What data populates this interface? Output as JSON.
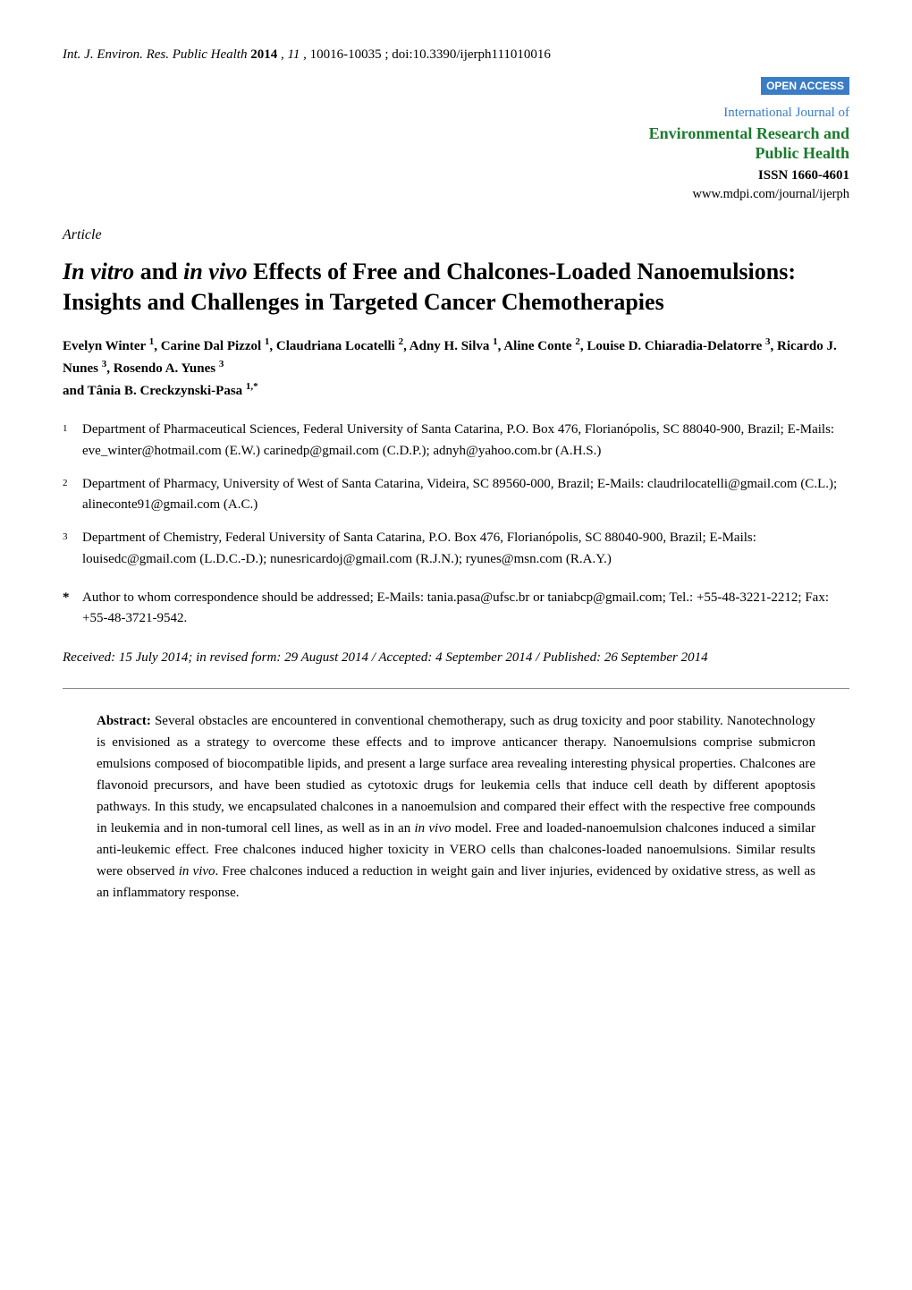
{
  "header": {
    "journal_abbrev": "Int. J. Environ. Res. Public Health",
    "year": "2014",
    "volume": "11",
    "pages": "10016-10035",
    "doi": "doi:10.3390/ijerph111010016"
  },
  "open_access": "OPEN ACCESS",
  "journal": {
    "intro": "International Journal of",
    "name_line1": "Environmental Research and",
    "name_line2": "Public Health",
    "issn": "ISSN 1660-4601",
    "url": "www.mdpi.com/journal/ijerph"
  },
  "article_type": "Article",
  "title": {
    "seg1_italic": "In vitro",
    "seg2": " and ",
    "seg3_italic": "in vivo",
    "seg4": " Effects of Free and Chalcones-Loaded Nanoemulsions: Insights and Challenges in Targeted Cancer Chemotherapies"
  },
  "authors": {
    "a1": "Evelyn Winter",
    "a1_sup": "1",
    "a2": "Carine Dal Pizzol",
    "a2_sup": "1",
    "a3": "Claudriana Locatelli",
    "a3_sup": "2",
    "a4": "Adny H. Silva",
    "a4_sup": "1",
    "a5": "Aline Conte",
    "a5_sup": "2",
    "a6": "Louise D. Chiaradia-Delatorre",
    "a6_sup": "3",
    "a7": "Ricardo J. Nunes",
    "a7_sup": "3",
    "a8": "Rosendo A. Yunes",
    "a8_sup": "3",
    "a9_prefix": "and ",
    "a9": "Tânia B. Creckzynski-Pasa",
    "a9_sup": "1,*"
  },
  "affiliations": [
    {
      "num": "1",
      "text": "Department of Pharmaceutical Sciences, Federal University of Santa Catarina, P.O. Box 476, Florianópolis, SC 88040-900, Brazil; E-Mails: eve_winter@hotmail.com (E.W.) carinedp@gmail.com (C.D.P.); adnyh@yahoo.com.br (A.H.S.)"
    },
    {
      "num": "2",
      "text": "Department of Pharmacy, University of West of Santa Catarina, Videira, SC 89560-000, Brazil; E-Mails: claudrilocatelli@gmail.com (C.L.); alineconte91@gmail.com (A.C.)"
    },
    {
      "num": "3",
      "text": "Department of Chemistry, Federal University of Santa Catarina, P.O. Box 476, Florianópolis, SC 88040-900, Brazil; E-Mails: louisedc@gmail.com (L.D.C.-D.); nunesricardoj@gmail.com (R.J.N.); ryunes@msn.com (R.A.Y.)"
    }
  ],
  "corresponding": {
    "star": "*",
    "text": "Author to whom correspondence should be addressed; E-Mails: tania.pasa@ufsc.br or taniabcp@gmail.com; Tel.: +55-48-3221-2212; Fax: +55-48-3721-9542."
  },
  "dates": "Received: 15 July 2014; in revised form: 29 August 2014 / Accepted: 4 September 2014 / Published: 26 September 2014",
  "abstract": {
    "label": "Abstract:",
    "seg1": " Several obstacles are encountered in conventional chemotherapy, such as drug toxicity and poor stability. Nanotechnology is envisioned as a strategy to overcome these effects and to improve anticancer therapy. Nanoemulsions comprise submicron emulsions composed of biocompatible lipids, and present a large surface area revealing interesting physical properties. Chalcones are flavonoid precursors, and have been studied as cytotoxic drugs for leukemia cells that induce cell death by different apoptosis pathways. In this study, we encapsulated chalcones in a nanoemulsion and compared their effect with the respective free compounds in leukemia and in non-tumoral cell lines, as well as in an ",
    "seg2_italic": "in vivo",
    "seg3": " model. Free and loaded-nanoemulsion chalcones induced a similar anti-leukemic effect. Free chalcones induced higher toxicity in VERO cells than chalcones-loaded nanoemulsions. Similar results were observed ",
    "seg4_italic": "in vivo",
    "seg5": ". Free chalcones induced a reduction in weight gain and liver injuries, evidenced by oxidative stress, as well as an inflammatory response."
  },
  "colors": {
    "open_access_bg": "#3b7dc4",
    "journal_intro": "#3b7dc4",
    "journal_name": "#1a7a2d",
    "divider": "#888888",
    "text": "#000000",
    "background": "#ffffff"
  }
}
